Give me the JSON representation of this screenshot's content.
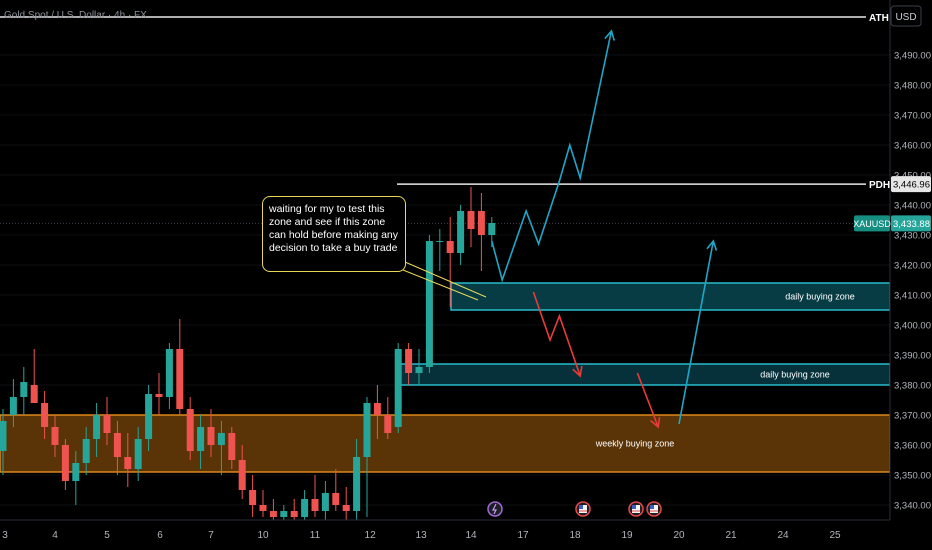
{
  "title": "Gold Spot / U.S. Dollar · 4h · FX",
  "currency": "USD",
  "symbol": "XAUUSD",
  "last_price": "3,433.88",
  "annotation": "waiting for my to test this zone and see if this zone can hold before making any decision to take a buy trade",
  "levels": [
    {
      "tag": "ATH",
      "price": 3501
    },
    {
      "tag": "PDH",
      "price": 3446.96,
      "price_label": "3,446.96"
    }
  ],
  "zones": [
    {
      "label": "daily buying zone",
      "top": 3414,
      "bottom": 3405,
      "kind": "daily"
    },
    {
      "label": "daily buying zone",
      "top": 3387,
      "bottom": 3380,
      "kind": "daily"
    },
    {
      "label": "weekly buying zone",
      "top": 3370,
      "bottom": 3351,
      "kind": "weekly"
    }
  ],
  "colors": {
    "bull": "#26a69a",
    "bear": "#ef5350",
    "zone_daily": "#2cc6d8",
    "zone_weekly": "#e8901c",
    "path_up": "#1ea7c8",
    "path_down": "#e83b3b",
    "callout": "#e8d85a"
  },
  "event_icons": [
    "lightning-icon",
    "us-flag-icon",
    "us-flag-icon",
    "us-flag-icon"
  ],
  "chart_data": {
    "type": "candlestick",
    "ylim": [
      3335,
      3505
    ],
    "y_ticks": [
      3340,
      3350,
      3360,
      3370,
      3380,
      3390,
      3400,
      3410,
      3420,
      3430,
      3440,
      3450,
      3460,
      3470,
      3480,
      3490
    ],
    "y_tick_labels": [
      "3,340.00",
      "3,350.00",
      "3,360.00",
      "3,370.00",
      "3,380.00",
      "3,390.00",
      "3,400.00",
      "3,410.00",
      "3,420.00",
      "3,430.00",
      "3,440.00",
      "3,450.00",
      "3,460.00",
      "3,470.00",
      "3,480.00",
      "3,490.00"
    ],
    "x_labels": [
      "3",
      "4",
      "5",
      "6",
      "7",
      "10",
      "11",
      "12",
      "13",
      "14",
      "17",
      "18",
      "19",
      "20",
      "21",
      "24",
      "25"
    ],
    "x_label_positions": [
      0.2,
      5,
      10,
      15.1,
      20,
      25,
      30,
      35.3,
      40.2,
      45,
      50,
      55,
      60,
      65,
      70,
      75,
      80
    ],
    "candles": [
      {
        "o": 3358,
        "h": 3372,
        "l": 3350,
        "c": 3368
      },
      {
        "o": 3370,
        "h": 3382,
        "l": 3366,
        "c": 3376
      },
      {
        "o": 3376,
        "h": 3386,
        "l": 3370,
        "c": 3381
      },
      {
        "o": 3380,
        "h": 3392,
        "l": 3374,
        "c": 3374
      },
      {
        "o": 3374,
        "h": 3378,
        "l": 3362,
        "c": 3366
      },
      {
        "o": 3366,
        "h": 3370,
        "l": 3356,
        "c": 3360
      },
      {
        "o": 3360,
        "h": 3362,
        "l": 3345,
        "c": 3348
      },
      {
        "o": 3348,
        "h": 3358,
        "l": 3340,
        "c": 3354
      },
      {
        "o": 3354,
        "h": 3366,
        "l": 3350,
        "c": 3362
      },
      {
        "o": 3362,
        "h": 3374,
        "l": 3356,
        "c": 3370
      },
      {
        "o": 3370,
        "h": 3376,
        "l": 3360,
        "c": 3364
      },
      {
        "o": 3364,
        "h": 3368,
        "l": 3350,
        "c": 3356
      },
      {
        "o": 3356,
        "h": 3364,
        "l": 3346,
        "c": 3352
      },
      {
        "o": 3352,
        "h": 3366,
        "l": 3348,
        "c": 3362
      },
      {
        "o": 3362,
        "h": 3380,
        "l": 3358,
        "c": 3377
      },
      {
        "o": 3377,
        "h": 3384,
        "l": 3370,
        "c": 3376
      },
      {
        "o": 3376,
        "h": 3394,
        "l": 3372,
        "c": 3392
      },
      {
        "o": 3392,
        "h": 3402,
        "l": 3370,
        "c": 3372
      },
      {
        "o": 3372,
        "h": 3376,
        "l": 3355,
        "c": 3358
      },
      {
        "o": 3358,
        "h": 3370,
        "l": 3352,
        "c": 3366
      },
      {
        "o": 3366,
        "h": 3372,
        "l": 3356,
        "c": 3360
      },
      {
        "o": 3360,
        "h": 3368,
        "l": 3350,
        "c": 3364
      },
      {
        "o": 3364,
        "h": 3366,
        "l": 3352,
        "c": 3355
      },
      {
        "o": 3355,
        "h": 3360,
        "l": 3342,
        "c": 3345
      },
      {
        "o": 3345,
        "h": 3350,
        "l": 3336,
        "c": 3340
      },
      {
        "o": 3340,
        "h": 3345,
        "l": 3336,
        "c": 3338
      },
      {
        "o": 3338,
        "h": 3342,
        "l": 3335,
        "c": 3336
      },
      {
        "o": 3336,
        "h": 3340,
        "l": 3335,
        "c": 3338
      },
      {
        "o": 3338,
        "h": 3342,
        "l": 3335,
        "c": 3336
      },
      {
        "o": 3336,
        "h": 3345,
        "l": 3335,
        "c": 3342
      },
      {
        "o": 3342,
        "h": 3350,
        "l": 3336,
        "c": 3338
      },
      {
        "o": 3338,
        "h": 3348,
        "l": 3335,
        "c": 3344
      },
      {
        "o": 3344,
        "h": 3352,
        "l": 3338,
        "c": 3340
      },
      {
        "o": 3340,
        "h": 3346,
        "l": 3335,
        "c": 3338
      },
      {
        "o": 3338,
        "h": 3362,
        "l": 3335,
        "c": 3356
      },
      {
        "o": 3356,
        "h": 3376,
        "l": 3336,
        "c": 3374
      },
      {
        "o": 3374,
        "h": 3380,
        "l": 3362,
        "c": 3370
      },
      {
        "o": 3370,
        "h": 3376,
        "l": 3362,
        "c": 3364
      },
      {
        "o": 3366,
        "h": 3394,
        "l": 3364,
        "c": 3392
      },
      {
        "o": 3392,
        "h": 3394,
        "l": 3380,
        "c": 3384
      },
      {
        "o": 3384,
        "h": 3392,
        "l": 3380,
        "c": 3386
      },
      {
        "o": 3386,
        "h": 3430,
        "l": 3384,
        "c": 3428
      },
      {
        "o": 3428,
        "h": 3432,
        "l": 3418,
        "c": 3428
      },
      {
        "o": 3428,
        "h": 3436,
        "l": 3406,
        "c": 3424
      },
      {
        "o": 3424,
        "h": 3440,
        "l": 3420,
        "c": 3438
      },
      {
        "o": 3438,
        "h": 3446,
        "l": 3426,
        "c": 3432
      },
      {
        "o": 3438,
        "h": 3444,
        "l": 3418,
        "c": 3430
      },
      {
        "o": 3430,
        "h": 3436,
        "l": 3426,
        "c": 3434
      }
    ],
    "path_up": [
      [
        47,
        3428
      ],
      [
        48,
        3415
      ],
      [
        50.3,
        3438
      ],
      [
        51.5,
        3427
      ],
      [
        53.5,
        3448
      ],
      [
        54.5,
        3460
      ],
      [
        55.5,
        3449
      ],
      [
        58.5,
        3498
      ]
    ],
    "path_down_1": [
      [
        51,
        3411
      ],
      [
        52.6,
        3395
      ],
      [
        53.5,
        3403
      ],
      [
        55.5,
        3383
      ]
    ],
    "path_down_2": [
      [
        61,
        3384
      ],
      [
        63,
        3366
      ]
    ],
    "path_up_2": [
      [
        65,
        3367
      ],
      [
        68.3,
        3428
      ]
    ]
  }
}
